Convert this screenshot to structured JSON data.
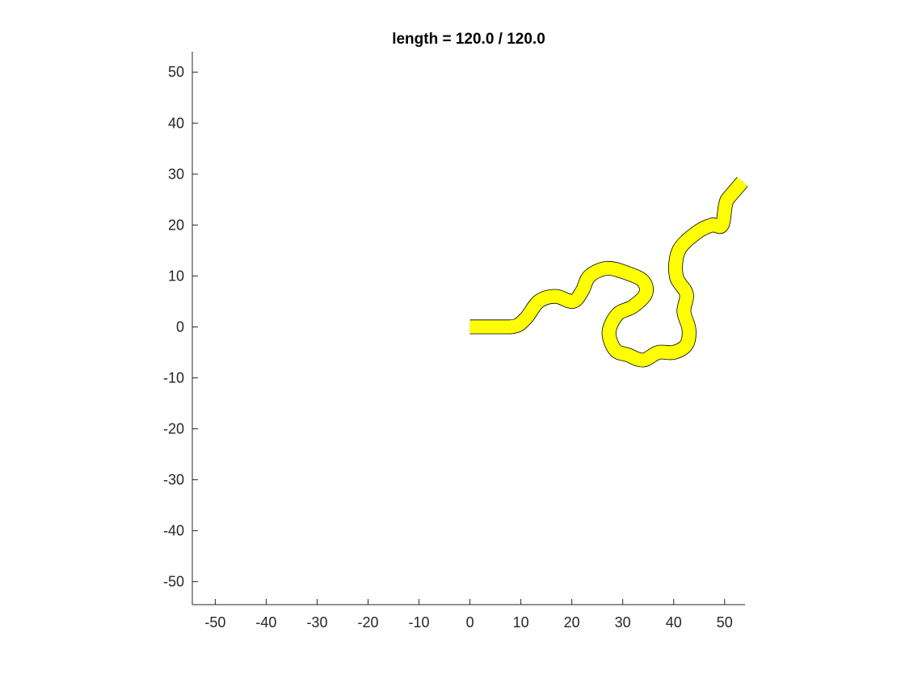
{
  "chart_data": {
    "type": "line",
    "title": "length = 120.0 / 120.0",
    "xlabel": "",
    "ylabel": "",
    "xlim": [
      -54.5,
      54
    ],
    "ylim": [
      -54.5,
      54
    ],
    "xticks": [
      -50,
      -40,
      -30,
      -20,
      -10,
      0,
      10,
      20,
      30,
      40,
      50
    ],
    "yticks": [
      -50,
      -40,
      -30,
      -20,
      -10,
      0,
      10,
      20,
      30,
      40,
      50
    ],
    "grid": false,
    "legend": "none",
    "series": [
      {
        "fill_color": "#ffff00",
        "edge_color": "#000000",
        "band_width": 2.6,
        "x": [
          0,
          8,
          10.8,
          13.5,
          16.8,
          20.2,
          22,
          23.5,
          27,
          31,
          34,
          34.5,
          32,
          29,
          27.3,
          28.5,
          31,
          34,
          37,
          40,
          42.5,
          43,
          42,
          42.5,
          40.5,
          41,
          44.5,
          47.5,
          49.5,
          50.5,
          53.5
        ],
        "y": [
          0,
          0,
          1.5,
          5,
          6,
          5,
          7,
          10,
          11.5,
          10.5,
          9,
          6.5,
          4,
          2.5,
          -1,
          -4.5,
          -5.5,
          -6.5,
          -5,
          -5,
          -3.5,
          -0.5,
          3,
          6.5,
          10,
          15,
          18.5,
          20,
          20,
          25,
          28.5
        ]
      }
    ]
  }
}
